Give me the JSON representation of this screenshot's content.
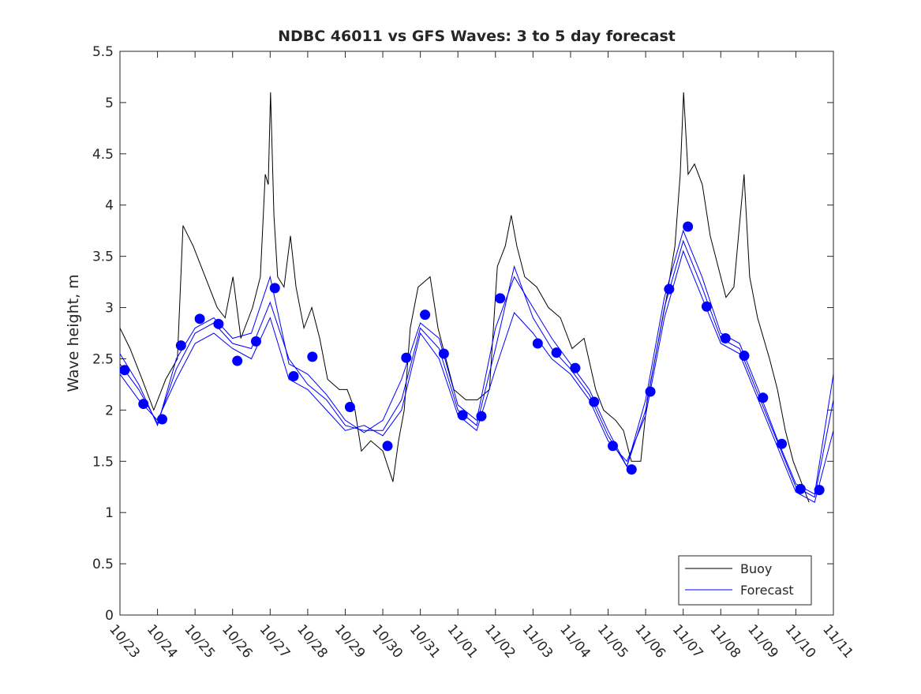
{
  "chart_data": {
    "type": "line",
    "title": "NDBC 46011 vs GFS Waves: 3 to 5 day forecast",
    "xlabel": "",
    "ylabel": "Wave height, m",
    "x_units": "days since 10/23 00:00",
    "xlim": [
      0,
      19
    ],
    "ylim": [
      0,
      5.5
    ],
    "yticks": [
      0,
      0.5,
      1,
      1.5,
      2,
      2.5,
      3,
      3.5,
      4,
      4.5,
      5,
      5.5
    ],
    "ytick_labels": [
      "0",
      "0.5",
      "1",
      "1.5",
      "2",
      "2.5",
      "3",
      "3.5",
      "4",
      "4.5",
      "5",
      "5.5"
    ],
    "xtick_labels": [
      "10/23",
      "10/24",
      "10/25",
      "10/26",
      "10/27",
      "10/28",
      "10/29",
      "10/30",
      "10/31",
      "11/01",
      "11/02",
      "11/03",
      "11/04",
      "11/05",
      "11/06",
      "11/07",
      "11/08",
      "11/09",
      "11/10",
      "11/11"
    ],
    "grid": false,
    "legend": {
      "placement": "bottom-right",
      "entries": [
        "Buoy",
        "Forecast"
      ]
    },
    "colors": {
      "buoy": "#000000",
      "forecast": "#0000ff"
    },
    "buoy": {
      "x": [
        0,
        0.27,
        0.59,
        0.9,
        1.22,
        1.53,
        1.68,
        1.95,
        2.27,
        2.59,
        2.8,
        3.01,
        3.22,
        3.53,
        3.74,
        3.87,
        3.95,
        4.01,
        4.1,
        4.2,
        4.37,
        4.54,
        4.69,
        4.9,
        5.11,
        5.32,
        5.53,
        5.84,
        6.05,
        6.26,
        6.43,
        6.68,
        7.0,
        7.27,
        7.42,
        7.57,
        7.73,
        7.94,
        8.26,
        8.47,
        8.68,
        8.89,
        9.21,
        9.52,
        9.84,
        10.05,
        10.26,
        10.42,
        10.57,
        10.78,
        11.1,
        11.41,
        11.73,
        12.04,
        12.36,
        12.67,
        12.88,
        13.2,
        13.41,
        13.62,
        13.87,
        14.04,
        14.25,
        14.56,
        14.78,
        14.92,
        15.01,
        15.13,
        15.3,
        15.51,
        15.72,
        15.93,
        16.14,
        16.35,
        16.62,
        16.77,
        16.98,
        17.3,
        17.51,
        17.72,
        17.93,
        18.14,
        18.35
      ],
      "y": [
        2.8,
        2.6,
        2.3,
        2.0,
        2.3,
        2.5,
        3.8,
        3.6,
        3.3,
        3.0,
        2.9,
        3.3,
        2.7,
        3.0,
        3.3,
        4.3,
        4.2,
        5.1,
        3.9,
        3.3,
        3.2,
        3.7,
        3.2,
        2.8,
        3.0,
        2.7,
        2.3,
        2.2,
        2.2,
        2.0,
        1.6,
        1.7,
        1.6,
        1.3,
        1.7,
        2.0,
        2.8,
        3.2,
        3.3,
        2.8,
        2.5,
        2.2,
        2.1,
        2.1,
        2.2,
        3.4,
        3.6,
        3.9,
        3.6,
        3.3,
        3.2,
        3.0,
        2.9,
        2.6,
        2.7,
        2.2,
        2.0,
        1.9,
        1.8,
        1.5,
        1.5,
        2.1,
        2.5,
        3.1,
        3.6,
        4.3,
        5.1,
        4.3,
        4.4,
        4.2,
        3.7,
        3.4,
        3.1,
        3.2,
        4.3,
        3.3,
        2.9,
        2.5,
        2.2,
        1.8,
        1.5,
        1.3,
        1.1
      ]
    },
    "forecast_series": [
      {
        "name": "Forecast",
        "x": [
          0,
          0.5,
          1.0,
          1.5,
          2.0,
          2.5,
          3.0,
          3.5,
          4.0,
          4.5,
          5.0,
          5.5,
          6.0,
          6.5,
          7.0,
          7.5,
          8.0,
          8.5,
          9.0,
          9.5,
          10.0,
          10.5,
          11.0,
          11.5,
          12.0,
          12.5,
          13.0,
          13.5,
          14.0,
          14.5,
          15.0,
          15.5,
          16.0,
          16.5,
          17.0,
          17.5,
          18.0,
          18.5,
          19.0
        ],
        "y": [
          2.45,
          2.2,
          1.87,
          2.4,
          2.75,
          2.85,
          2.65,
          2.6,
          3.05,
          2.5,
          2.25,
          2.1,
          1.85,
          1.8,
          1.8,
          2.1,
          2.8,
          2.6,
          2.0,
          1.85,
          2.6,
          3.4,
          2.9,
          2.6,
          2.4,
          2.15,
          1.75,
          1.45,
          2.0,
          3.0,
          3.65,
          3.2,
          2.7,
          2.6,
          2.15,
          1.7,
          1.25,
          1.15,
          2.1
        ]
      },
      {
        "name": "Forecast",
        "x": [
          0,
          0.5,
          1.0,
          1.5,
          2.0,
          2.5,
          3.0,
          3.5,
          4.0,
          4.5,
          5.0,
          5.5,
          6.0,
          6.5,
          7.0,
          7.5,
          8.0,
          8.5,
          9.0,
          9.5,
          10.0,
          10.5,
          11.0,
          11.5,
          12.0,
          12.5,
          13.0,
          13.5,
          14.0,
          14.5,
          15.0,
          15.5,
          16.0,
          16.5,
          17.0,
          17.5,
          18.0,
          18.5,
          19.0
        ],
        "y": [
          2.35,
          2.1,
          1.9,
          2.3,
          2.65,
          2.75,
          2.6,
          2.5,
          2.9,
          2.3,
          2.2,
          2.0,
          1.8,
          1.85,
          1.75,
          2.0,
          2.75,
          2.5,
          1.95,
          1.8,
          2.4,
          2.95,
          2.75,
          2.5,
          2.35,
          2.1,
          1.7,
          1.5,
          1.95,
          2.9,
          3.55,
          3.1,
          2.65,
          2.55,
          2.1,
          1.65,
          1.2,
          1.1,
          1.8
        ]
      },
      {
        "name": "Forecast",
        "x": [
          0,
          0.5,
          1.0,
          1.5,
          2.0,
          2.5,
          3.0,
          3.5,
          4.0,
          4.5,
          5.0,
          5.5,
          6.0,
          6.5,
          7.0,
          7.5,
          8.0,
          8.5,
          9.0,
          9.5,
          10.0,
          10.5,
          11.0,
          11.5,
          12.0,
          12.5,
          13.0,
          13.5,
          14.0,
          14.5,
          15.0,
          15.5,
          16.0,
          16.5,
          17.0,
          17.5,
          18.0,
          18.5,
          19.0
        ],
        "y": [
          2.55,
          2.25,
          1.85,
          2.5,
          2.8,
          2.9,
          2.7,
          2.75,
          3.3,
          2.45,
          2.35,
          2.15,
          1.9,
          1.78,
          1.9,
          2.3,
          2.85,
          2.7,
          2.05,
          1.9,
          2.8,
          3.3,
          3.0,
          2.7,
          2.45,
          2.2,
          1.8,
          1.45,
          2.1,
          3.1,
          3.75,
          3.3,
          2.75,
          2.65,
          2.2,
          1.72,
          1.28,
          1.18,
          2.35
        ]
      }
    ],
    "forecast_points": {
      "x": [
        0.125,
        0.625,
        1.125,
        1.625,
        2.125,
        2.625,
        3.125,
        3.625,
        4.125,
        4.625,
        5.125,
        6.125,
        7.125,
        7.625,
        8.125,
        8.625,
        9.125,
        9.625,
        10.125,
        11.125,
        11.625,
        12.125,
        12.625,
        13.125,
        13.625,
        14.125,
        14.625,
        15.125,
        15.625,
        16.125,
        16.625,
        17.125,
        17.625,
        18.125,
        18.625
      ],
      "y": [
        2.39,
        2.06,
        1.91,
        2.63,
        2.89,
        2.84,
        2.48,
        2.67,
        3.19,
        2.33,
        2.52,
        2.03,
        1.65,
        2.51,
        2.93,
        2.55,
        1.95,
        1.94,
        3.09,
        2.65,
        2.56,
        2.41,
        2.08,
        1.65,
        1.42,
        2.18,
        3.18,
        3.79,
        3.01,
        2.7,
        2.53,
        2.12,
        1.67,
        1.23,
        1.22
      ]
    }
  }
}
